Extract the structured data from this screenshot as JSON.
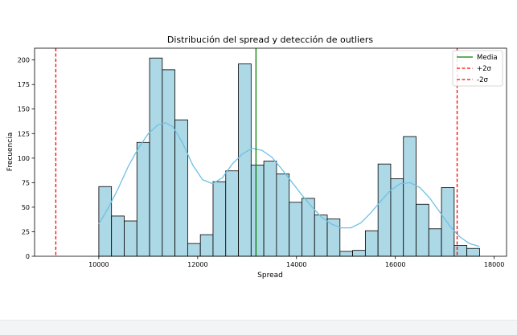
{
  "chart_data": {
    "type": "histogram",
    "title": "Distribución del spread y detección de outliers",
    "xlabel": "Spread",
    "ylabel": "Frecuencia",
    "xlim": [
      8700,
      18250
    ],
    "ylim": [
      0,
      212
    ],
    "x_ticks": [
      10000,
      12000,
      14000,
      16000,
      18000
    ],
    "y_ticks": [
      0,
      25,
      50,
      75,
      100,
      125,
      150,
      175,
      200
    ],
    "bin_start": 10000,
    "bin_width": 256.8,
    "values": [
      71,
      41,
      36,
      116,
      202,
      190,
      139,
      13,
      22,
      76,
      87,
      196,
      93,
      97,
      84,
      55,
      59,
      42,
      38,
      5,
      6,
      26,
      94,
      79,
      122,
      53,
      28,
      70,
      11,
      8
    ],
    "bar_color": "#ADD8E6",
    "kde": {
      "color": "#6EC1E4",
      "x": [
        10000,
        10200,
        10400,
        10600,
        10800,
        11000,
        11200,
        11350,
        11500,
        11700,
        11900,
        12100,
        12300,
        12500,
        12700,
        12900,
        13100,
        13300,
        13500,
        13700,
        13900,
        14100,
        14300,
        14500,
        14700,
        14900,
        15100,
        15300,
        15500,
        15700,
        15900,
        16100,
        16300,
        16500,
        16700,
        16900,
        17100,
        17300,
        17500,
        17700
      ],
      "y": [
        33,
        50,
        70,
        92,
        110,
        125,
        134,
        136,
        132,
        115,
        93,
        78,
        74,
        80,
        94,
        104,
        110,
        108,
        101,
        89,
        76,
        63,
        51,
        40,
        33,
        29,
        29,
        34,
        44,
        56,
        67,
        74,
        75,
        70,
        59,
        45,
        31,
        20,
        13,
        10
      ]
    },
    "vlines": [
      {
        "name": "Media",
        "x": 13180,
        "color": "#008000",
        "style": "solid"
      },
      {
        "name": "+2σ",
        "x": 17250,
        "color": "#FF0000",
        "style": "dashed"
      },
      {
        "name": "-2σ",
        "x": 9130,
        "color": "#FF0000",
        "style": "dashed"
      }
    ],
    "legend_position": "top-right",
    "grid": false
  }
}
